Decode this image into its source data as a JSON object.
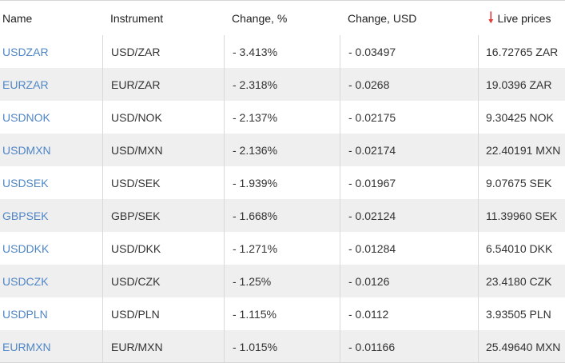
{
  "columns": {
    "name": "Name",
    "instrument": "Instrument",
    "change_pct": "Change, %",
    "change_usd": "Change, USD",
    "live_prices": "Live prices",
    "sort_icon": "arrow-down-icon",
    "sort_color": "#e53935"
  },
  "colors": {
    "link": "#4f86c6",
    "stripe": "#efefef",
    "divider": "#d9d9d9"
  },
  "rows": [
    {
      "name": "USDZAR",
      "instrument": "USD/ZAR",
      "change_pct": "- 3.413%",
      "change_usd": "- 0.03497",
      "live_price": "16.72765 ZAR"
    },
    {
      "name": "EURZAR",
      "instrument": "EUR/ZAR",
      "change_pct": "- 2.318%",
      "change_usd": "- 0.0268",
      "live_price": "19.0396 ZAR"
    },
    {
      "name": "USDNOK",
      "instrument": "USD/NOK",
      "change_pct": "- 2.137%",
      "change_usd": "- 0.02175",
      "live_price": "9.30425 NOK"
    },
    {
      "name": "USDMXN",
      "instrument": "USD/MXN",
      "change_pct": "- 2.136%",
      "change_usd": "- 0.02174",
      "live_price": "22.40191 MXN"
    },
    {
      "name": "USDSEK",
      "instrument": "USD/SEK",
      "change_pct": "- 1.939%",
      "change_usd": "- 0.01967",
      "live_price": "9.07675 SEK"
    },
    {
      "name": "GBPSEK",
      "instrument": "GBP/SEK",
      "change_pct": "- 1.668%",
      "change_usd": "- 0.02124",
      "live_price": "11.39960 SEK"
    },
    {
      "name": "USDDKK",
      "instrument": "USD/DKK",
      "change_pct": "- 1.271%",
      "change_usd": "- 0.01284",
      "live_price": "6.54010 DKK"
    },
    {
      "name": "USDCZK",
      "instrument": "USD/CZK",
      "change_pct": "- 1.25%",
      "change_usd": "- 0.0126",
      "live_price": "23.4180 CZK"
    },
    {
      "name": "USDPLN",
      "instrument": "USD/PLN",
      "change_pct": "- 1.115%",
      "change_usd": "- 0.0112",
      "live_price": "3.93505 PLN"
    },
    {
      "name": "EURMXN",
      "instrument": "EUR/MXN",
      "change_pct": "- 1.015%",
      "change_usd": "- 0.01166",
      "live_price": "25.49640 MXN"
    }
  ]
}
